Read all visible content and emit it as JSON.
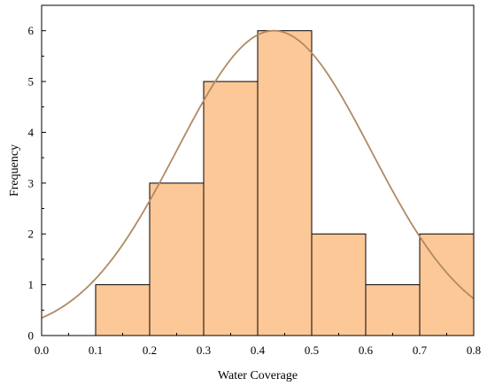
{
  "chart_data": {
    "type": "bar",
    "subtype": "histogram",
    "bins": [
      {
        "x0": 0.1,
        "x1": 0.2,
        "count": 1
      },
      {
        "x0": 0.2,
        "x1": 0.3,
        "count": 3
      },
      {
        "x0": 0.3,
        "x1": 0.4,
        "count": 5
      },
      {
        "x0": 0.4,
        "x1": 0.5,
        "count": 6
      },
      {
        "x0": 0.5,
        "x1": 0.6,
        "count": 2
      },
      {
        "x0": 0.6,
        "x1": 0.7,
        "count": 1
      },
      {
        "x0": 0.7,
        "x1": 0.8,
        "count": 2
      }
    ],
    "normal_curve": {
      "mean": 0.43,
      "sd": 0.18,
      "peak": 6.0
    },
    "xlabel": "Water Coverage",
    "ylabel": "Frequency",
    "xlim": [
      0,
      0.8
    ],
    "ylim": [
      0,
      6.5
    ],
    "xticks": [
      "0.0",
      "0.1",
      "0.2",
      "0.3",
      "0.4",
      "0.5",
      "0.6",
      "0.7",
      "0.8"
    ],
    "yticks": [
      "0",
      "1",
      "2",
      "3",
      "4",
      "5",
      "6"
    ],
    "grid": false,
    "legend": "none",
    "colors": {
      "bar_fill": "#FDC897",
      "bar_stroke": "#000000",
      "curve": "#B08A63",
      "axis": "#000000"
    }
  }
}
